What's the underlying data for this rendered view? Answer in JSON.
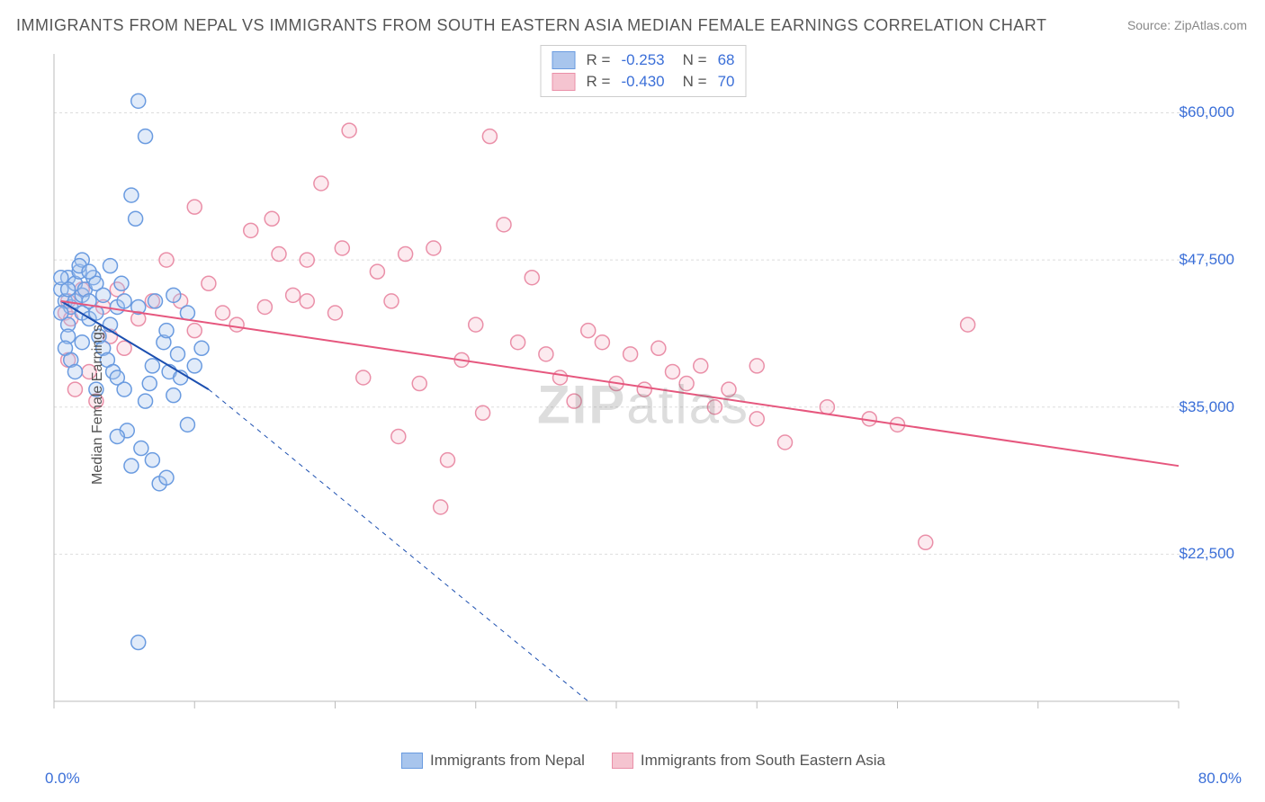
{
  "title": "IMMIGRANTS FROM NEPAL VS IMMIGRANTS FROM SOUTH EASTERN ASIA MEDIAN FEMALE EARNINGS CORRELATION CHART",
  "source_label": "Source:",
  "source_name": "ZipAtlas.com",
  "y_axis_label": "Median Female Earnings",
  "watermark_bold": "ZIP",
  "watermark_light": "atlas",
  "chart": {
    "type": "scatter",
    "xlim": [
      0,
      80
    ],
    "ylim": [
      10000,
      65000
    ],
    "x_min_label": "0.0%",
    "x_max_label": "80.0%",
    "y_ticks": [
      22500,
      35000,
      47500,
      60000
    ],
    "y_tick_labels": [
      "$22,500",
      "$35,000",
      "$47,500",
      "$60,000"
    ],
    "x_ticks": [
      0,
      10,
      20,
      30,
      40,
      50,
      60,
      70,
      80
    ],
    "background_color": "#ffffff",
    "grid_color": "#dddddd",
    "marker_radius": 8,
    "marker_stroke_width": 1.5,
    "marker_fill_opacity": 0.35,
    "series": [
      {
        "id": "nepal",
        "label": "Immigrants from Nepal",
        "color_fill": "#a8c5ed",
        "color_stroke": "#6a9be0",
        "r_value": "-0.253",
        "n_value": "68",
        "trend": {
          "solid": {
            "x1": 0.5,
            "y1": 44000,
            "x2": 11,
            "y2": 36500
          },
          "dashed": {
            "x1": 11,
            "y1": 36500,
            "x2": 38,
            "y2": 10000
          },
          "color": "#1c4fb0",
          "width": 2
        },
        "points": [
          [
            0.5,
            45000
          ],
          [
            0.8,
            44000
          ],
          [
            1.0,
            46000
          ],
          [
            1.2,
            43500
          ],
          [
            1.0,
            42000
          ],
          [
            1.5,
            45500
          ],
          [
            1.5,
            44000
          ],
          [
            1.8,
            46500
          ],
          [
            2.0,
            44500
          ],
          [
            2.0,
            43000
          ],
          [
            2.0,
            47500
          ],
          [
            2.2,
            45000
          ],
          [
            2.5,
            44000
          ],
          [
            2.5,
            42500
          ],
          [
            2.8,
            46000
          ],
          [
            3.0,
            45500
          ],
          [
            3.0,
            43000
          ],
          [
            3.2,
            41000
          ],
          [
            3.5,
            44500
          ],
          [
            3.5,
            40000
          ],
          [
            3.8,
            39000
          ],
          [
            4.0,
            47000
          ],
          [
            4.0,
            42000
          ],
          [
            4.2,
            38000
          ],
          [
            4.5,
            43500
          ],
          [
            4.5,
            37500
          ],
          [
            4.8,
            45500
          ],
          [
            5.0,
            44000
          ],
          [
            5.0,
            36500
          ],
          [
            5.2,
            33000
          ],
          [
            5.5,
            53000
          ],
          [
            5.5,
            30000
          ],
          [
            5.8,
            51000
          ],
          [
            6.0,
            61000
          ],
          [
            6.0,
            43500
          ],
          [
            6.2,
            31500
          ],
          [
            6.5,
            58000
          ],
          [
            6.5,
            35500
          ],
          [
            6.8,
            37000
          ],
          [
            7.0,
            38500
          ],
          [
            7.0,
            30500
          ],
          [
            7.2,
            44000
          ],
          [
            7.5,
            28500
          ],
          [
            7.8,
            40500
          ],
          [
            8.0,
            29000
          ],
          [
            8.0,
            41500
          ],
          [
            8.2,
            38000
          ],
          [
            8.5,
            36000
          ],
          [
            8.5,
            44500
          ],
          [
            8.8,
            39500
          ],
          [
            9.0,
            37500
          ],
          [
            9.5,
            43000
          ],
          [
            9.5,
            33500
          ],
          [
            10.0,
            38500
          ],
          [
            10.5,
            40000
          ],
          [
            6.0,
            15000
          ],
          [
            4.5,
            32500
          ],
          [
            3.0,
            36500
          ],
          [
            2.0,
            40500
          ],
          [
            1.0,
            41000
          ],
          [
            0.5,
            43000
          ],
          [
            0.8,
            40000
          ],
          [
            1.2,
            39000
          ],
          [
            1.5,
            38000
          ],
          [
            1.8,
            47000
          ],
          [
            2.5,
            46500
          ],
          [
            1.0,
            45000
          ],
          [
            0.5,
            46000
          ]
        ]
      },
      {
        "id": "sea",
        "label": "Immigrants from South Eastern Asia",
        "color_fill": "#f5c4d0",
        "color_stroke": "#ea8fa8",
        "r_value": "-0.430",
        "n_value": "70",
        "trend": {
          "solid": {
            "x1": 0.5,
            "y1": 44000,
            "x2": 80,
            "y2": 30000
          },
          "color": "#e6577e",
          "width": 2
        },
        "points": [
          [
            1.0,
            44000
          ],
          [
            2.0,
            45000
          ],
          [
            3.0,
            35500
          ],
          [
            3.5,
            43500
          ],
          [
            4.0,
            41000
          ],
          [
            5.0,
            40000
          ],
          [
            6.0,
            42500
          ],
          [
            7.0,
            44000
          ],
          [
            8.0,
            47500
          ],
          [
            9.0,
            44000
          ],
          [
            10.0,
            41500
          ],
          [
            11.0,
            45500
          ],
          [
            12.0,
            43000
          ],
          [
            13.0,
            42000
          ],
          [
            14.0,
            50000
          ],
          [
            15.0,
            43500
          ],
          [
            15.5,
            51000
          ],
          [
            16.0,
            48000
          ],
          [
            17.0,
            44500
          ],
          [
            18.0,
            47500
          ],
          [
            19.0,
            54000
          ],
          [
            20.0,
            43000
          ],
          [
            20.5,
            48500
          ],
          [
            21.0,
            58500
          ],
          [
            22.0,
            37500
          ],
          [
            23.0,
            46500
          ],
          [
            24.0,
            44000
          ],
          [
            24.5,
            32500
          ],
          [
            25.0,
            48000
          ],
          [
            26.0,
            37000
          ],
          [
            27.0,
            48500
          ],
          [
            27.5,
            26500
          ],
          [
            28.0,
            30500
          ],
          [
            29.0,
            39000
          ],
          [
            30.0,
            42000
          ],
          [
            30.5,
            34500
          ],
          [
            31.0,
            58000
          ],
          [
            32.0,
            50500
          ],
          [
            33.0,
            40500
          ],
          [
            34.0,
            46000
          ],
          [
            35.0,
            39500
          ],
          [
            36.0,
            37500
          ],
          [
            37.0,
            35500
          ],
          [
            38.0,
            41500
          ],
          [
            39.0,
            40500
          ],
          [
            40.0,
            37000
          ],
          [
            41.0,
            39500
          ],
          [
            42.0,
            36500
          ],
          [
            43.0,
            40000
          ],
          [
            44.0,
            38000
          ],
          [
            45.0,
            37000
          ],
          [
            46.0,
            38500
          ],
          [
            47.0,
            35000
          ],
          [
            48.0,
            36500
          ],
          [
            50.0,
            34000
          ],
          [
            52.0,
            32000
          ],
          [
            55.0,
            35000
          ],
          [
            58.0,
            34000
          ],
          [
            60.0,
            33500
          ],
          [
            62.0,
            23500
          ],
          [
            65.0,
            42000
          ],
          [
            1.5,
            36500
          ],
          [
            2.5,
            38000
          ],
          [
            4.5,
            45000
          ],
          [
            0.8,
            43000
          ],
          [
            1.2,
            42500
          ],
          [
            50.0,
            38500
          ],
          [
            18.0,
            44000
          ],
          [
            10.0,
            52000
          ],
          [
            1.0,
            39000
          ]
        ]
      }
    ]
  },
  "legend_top": {
    "r_label": "R =",
    "n_label": "N ="
  }
}
